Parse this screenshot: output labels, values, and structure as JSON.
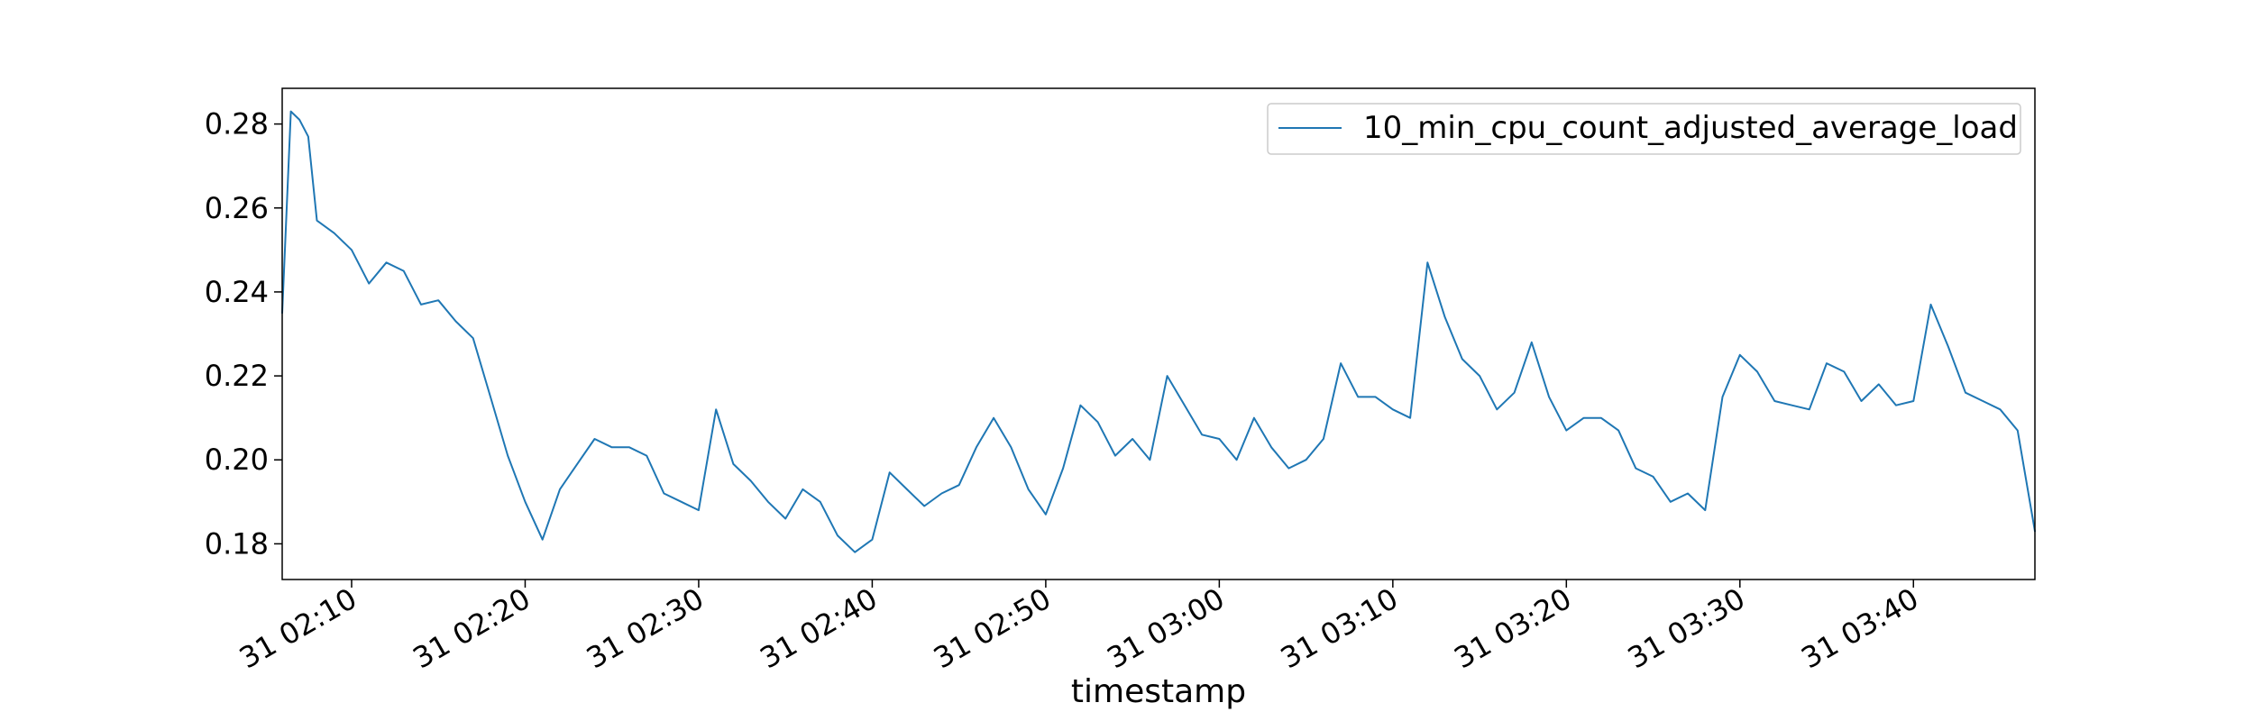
{
  "chart_data": {
    "type": "line",
    "xlabel": "timestamp",
    "ylabel": "",
    "xlim": [
      "31 02:06",
      "31 03:47"
    ],
    "ylim": [
      0.1715,
      0.2885
    ],
    "yticks": [
      0.18,
      0.2,
      0.22,
      0.24,
      0.26,
      0.28
    ],
    "ytick_labels": [
      "0.18",
      "0.20",
      "0.22",
      "0.24",
      "0.26",
      "0.28"
    ],
    "xticks": [
      "31 02:10",
      "31 02:20",
      "31 02:30",
      "31 02:40",
      "31 02:50",
      "31 03:00",
      "31 03:10",
      "31 03:20",
      "31 03:30",
      "31 03:40"
    ],
    "xtick_labels": [
      "31 02:10",
      "31 02:20",
      "31 02:30",
      "31 02:40",
      "31 02:50",
      "31 03:00",
      "31 03:10",
      "31 03:20",
      "31 03:30",
      "31 03:40"
    ],
    "legend": {
      "position": "upper-right"
    },
    "grid": false,
    "series": [
      {
        "name": "10_min_cpu_count_adjusted_average_load",
        "color": "#1f77b4",
        "x": [
          "31 02:06",
          "31 02:06:30",
          "31 02:07",
          "31 02:07:30",
          "31 02:08",
          "31 02:09",
          "31 02:10",
          "31 02:11",
          "31 02:12",
          "31 02:13",
          "31 02:14",
          "31 02:15",
          "31 02:16",
          "31 02:17",
          "31 02:18",
          "31 02:19",
          "31 02:20",
          "31 02:21",
          "31 02:22",
          "31 02:23",
          "31 02:24",
          "31 02:25",
          "31 02:26",
          "31 02:27",
          "31 02:28",
          "31 02:29",
          "31 02:30",
          "31 02:31",
          "31 02:32",
          "31 02:33",
          "31 02:34",
          "31 02:35",
          "31 02:36",
          "31 02:37",
          "31 02:38",
          "31 02:39",
          "31 02:40",
          "31 02:41",
          "31 02:42",
          "31 02:43",
          "31 02:44",
          "31 02:45",
          "31 02:46",
          "31 02:47",
          "31 02:48",
          "31 02:49",
          "31 02:50",
          "31 02:51",
          "31 02:52",
          "31 02:53",
          "31 02:54",
          "31 02:55",
          "31 02:56",
          "31 02:57",
          "31 02:58",
          "31 02:59",
          "31 03:00",
          "31 03:01",
          "31 03:02",
          "31 03:03",
          "31 03:04",
          "31 03:05",
          "31 03:06",
          "31 03:07",
          "31 03:08",
          "31 03:09",
          "31 03:10",
          "31 03:11",
          "31 03:12",
          "31 03:13",
          "31 03:14",
          "31 03:15",
          "31 03:16",
          "31 03:17",
          "31 03:18",
          "31 03:19",
          "31 03:20",
          "31 03:21",
          "31 03:22",
          "31 03:23",
          "31 03:24",
          "31 03:25",
          "31 03:26",
          "31 03:27",
          "31 03:28",
          "31 03:29",
          "31 03:30",
          "31 03:31",
          "31 03:32",
          "31 03:33",
          "31 03:34",
          "31 03:35",
          "31 03:36",
          "31 03:37",
          "31 03:38",
          "31 03:39",
          "31 03:40",
          "31 03:41",
          "31 03:42",
          "31 03:43",
          "31 03:44",
          "31 03:45",
          "31 03:46",
          "31 03:47"
        ],
        "values": [
          0.235,
          0.283,
          0.281,
          0.277,
          0.257,
          0.254,
          0.25,
          0.242,
          0.247,
          0.245,
          0.237,
          0.238,
          0.233,
          0.229,
          0.215,
          0.201,
          0.19,
          0.181,
          0.193,
          0.199,
          0.205,
          0.203,
          0.203,
          0.201,
          0.192,
          0.19,
          0.188,
          0.212,
          0.199,
          0.195,
          0.19,
          0.186,
          0.193,
          0.19,
          0.182,
          0.178,
          0.181,
          0.197,
          0.193,
          0.189,
          0.192,
          0.194,
          0.203,
          0.21,
          0.203,
          0.193,
          0.187,
          0.198,
          0.213,
          0.209,
          0.201,
          0.205,
          0.2,
          0.22,
          0.213,
          0.206,
          0.205,
          0.2,
          0.21,
          0.203,
          0.198,
          0.2,
          0.205,
          0.223,
          0.215,
          0.215,
          0.212,
          0.21,
          0.247,
          0.234,
          0.224,
          0.22,
          0.212,
          0.216,
          0.228,
          0.215,
          0.207,
          0.21,
          0.21,
          0.207,
          0.198,
          0.196,
          0.19,
          0.192,
          0.188,
          0.215,
          0.225,
          0.221,
          0.214,
          0.213,
          0.212,
          0.223,
          0.221,
          0.214,
          0.218,
          0.213,
          0.214,
          0.237,
          0.227,
          0.216,
          0.214,
          0.212,
          0.207,
          0.183
        ]
      }
    ]
  }
}
